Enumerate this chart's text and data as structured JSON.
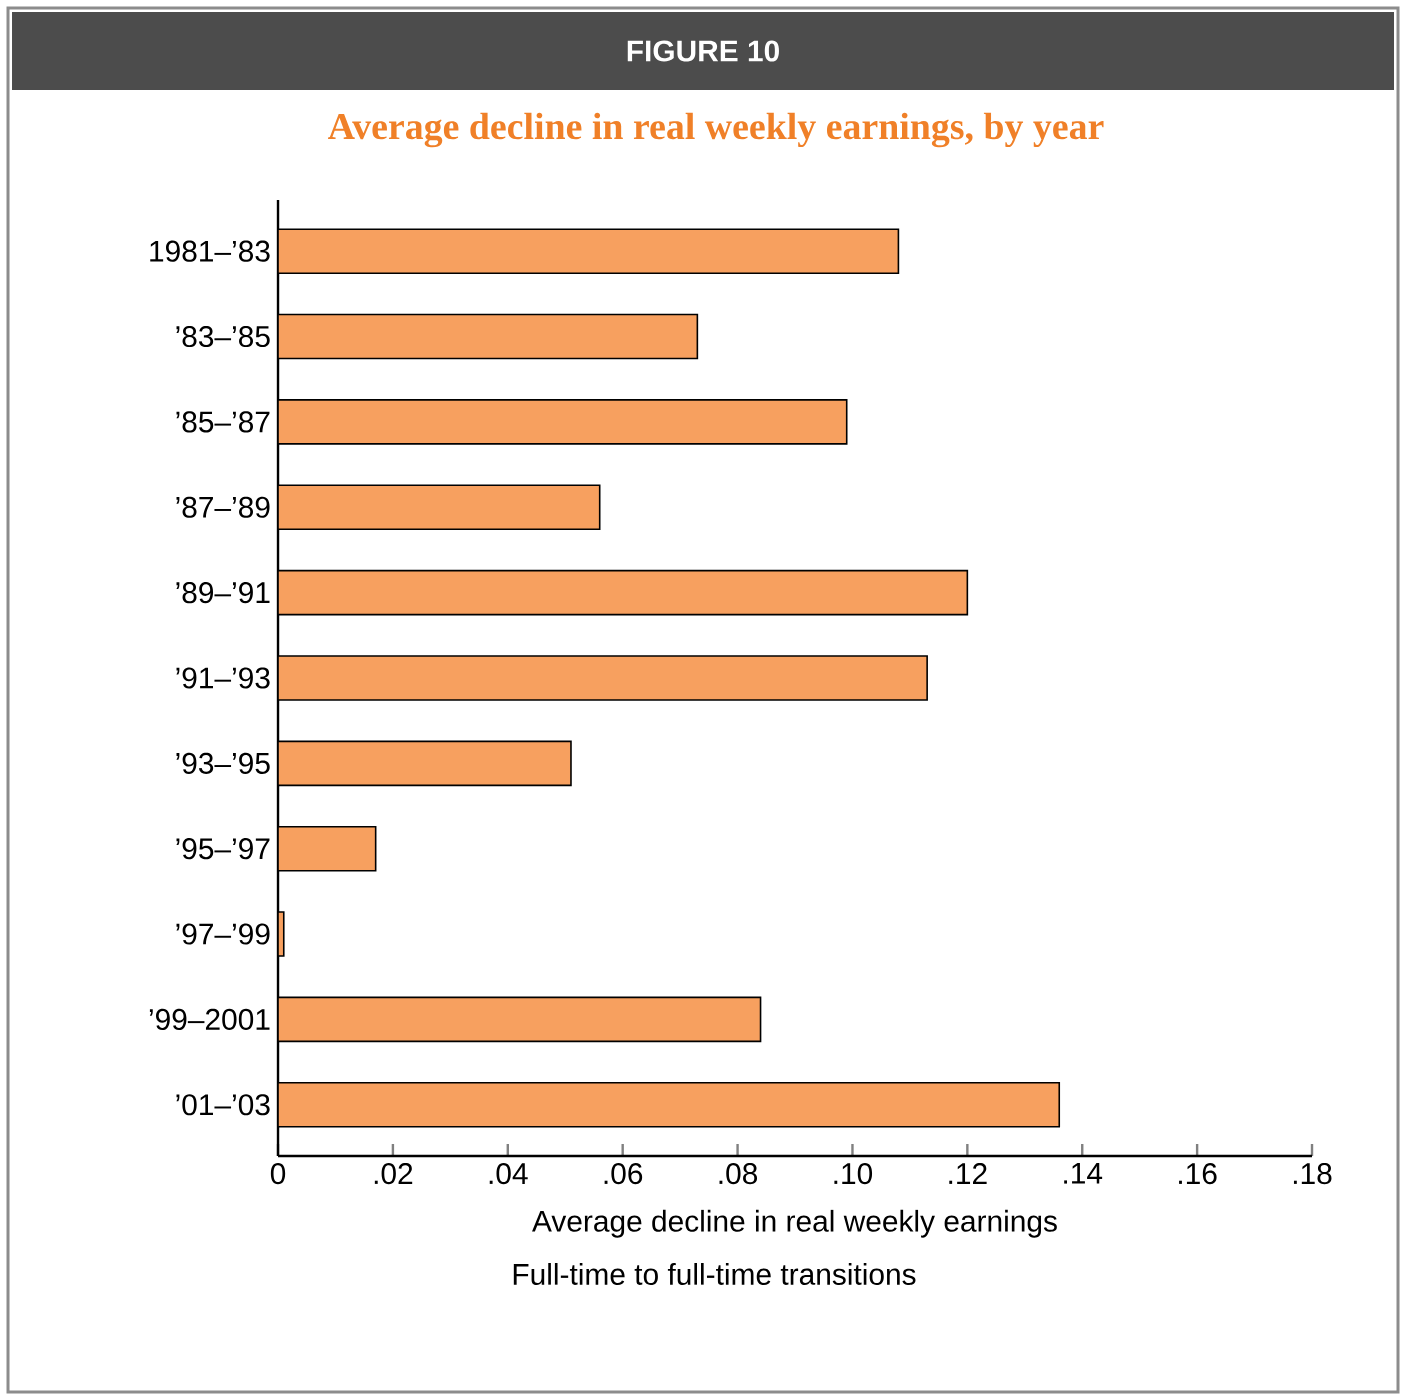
{
  "chart_data": {
    "type": "bar",
    "orientation": "horizontal",
    "title": "FIGURE 10",
    "subtitle": "Average decline in real weekly earnings, by year",
    "categories": [
      "1981–’83",
      "’83–’85",
      "’85–’87",
      "’87–’89",
      "’89–’91",
      "’91–’93",
      "’93–’95",
      "’95–’97",
      "’97–’99",
      "’99–2001",
      "’01–’03"
    ],
    "values": [
      0.108,
      0.073,
      0.099,
      0.056,
      0.12,
      0.113,
      0.051,
      0.017,
      0.001,
      0.084,
      0.136
    ],
    "color": "#f7a05f",
    "xlim": [
      0,
      0.18
    ],
    "xticks": [
      0,
      {
        "value": 0.02,
        "label": ".02"
      },
      {
        "value": 0.04,
        "label": ".04"
      },
      {
        "value": 0.06,
        "label": ".06"
      },
      {
        "value": 0.08,
        "label": ".08"
      },
      {
        "value": 0.1,
        "label": ".10"
      },
      {
        "value": 0.12,
        "label": ".12"
      },
      {
        "value": 0.14,
        "label": ".14"
      },
      {
        "value": 0.16,
        "label": ".16"
      },
      {
        "value": 0.18,
        "label": ".18"
      }
    ],
    "xlabel": "Average decline in real weekly earnings",
    "annotations": [
      "Full-time to full-time transitions"
    ],
    "grid": false
  }
}
